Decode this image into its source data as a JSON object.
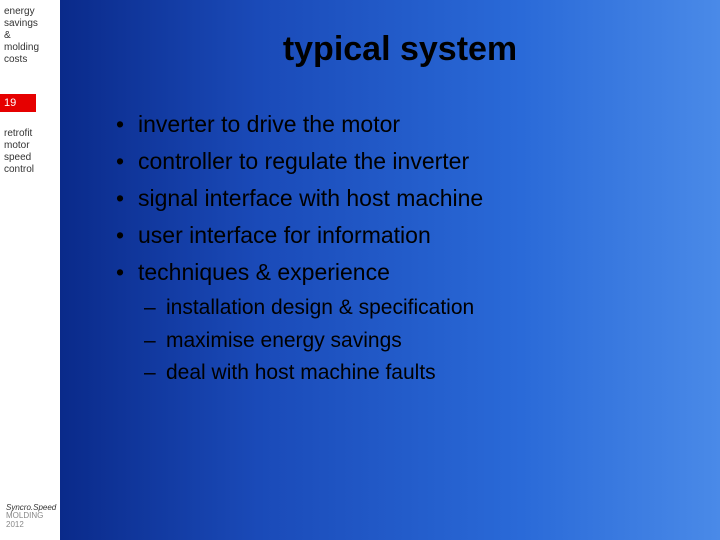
{
  "sidebar": {
    "top_text": "energy\nsavings\n&\nmolding\ncosts",
    "page_number": "19",
    "sub_text": "retrofit\nmotor\nspeed\ncontrol",
    "logo_brand": "Syncro.Speed",
    "logo_sub": "MOLDING 2012"
  },
  "main": {
    "title": "typical system",
    "bullets": [
      {
        "text": "inverter to drive the motor"
      },
      {
        "text": "controller to regulate the inverter"
      },
      {
        "text": "signal interface with host machine"
      },
      {
        "text": "user interface for information"
      },
      {
        "text": "techniques & experience",
        "sub": [
          "installation design & specification",
          "maximise energy savings",
          "deal with host machine faults"
        ]
      }
    ]
  },
  "style": {
    "background_gradient": [
      "#0a2a8a",
      "#1a4ab8",
      "#2a6ad8",
      "#4a8ae8"
    ],
    "sidebar_bg": "#ffffff",
    "page_box_bg": "#e60000",
    "page_box_color": "#ffffff",
    "title_fontsize": 34,
    "bullet_fontsize": 23,
    "subbullet_fontsize": 21,
    "text_color": "#000000",
    "sidebar_text_color": "#333333"
  }
}
